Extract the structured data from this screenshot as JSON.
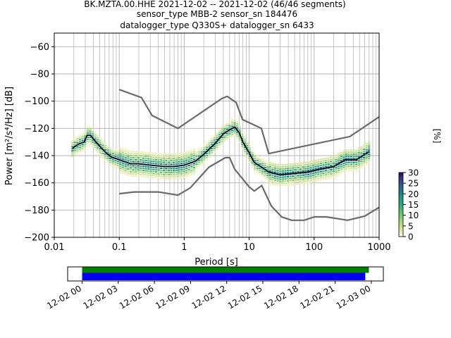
{
  "title_lines": [
    "BK.MZTA.00.HHE   2021-12-02 -- 2021-12-02  (46/46 segments)",
    "sensor_type MBB-2 sensor_sn 184476",
    "datalogger_type Q330S+ datalogger_sn 6433"
  ],
  "colors": {
    "noise_model": "#6a6a6a",
    "mean_line": "#000000",
    "grid": "#b0b0b0",
    "coverage_green": "#008000",
    "coverage_blue": "#0000ee"
  },
  "chart_data": [
    {
      "type": "heatmap",
      "title": "BK.MZTA.00.HHE   2021-12-02 -- 2021-12-02  (46/46 segments)",
      "xlabel": "Period [s]",
      "ylabel": "Power [m²/s⁴/Hz] [dB]",
      "x_scale": "log",
      "xlim": [
        0.01,
        1000
      ],
      "ylim": [
        -200,
        -50
      ],
      "grid": true,
      "x_ticks": [
        {
          "value": 0.01,
          "label": "0.01"
        },
        {
          "value": 0.1,
          "label": "0.1"
        },
        {
          "value": 1,
          "label": "1"
        },
        {
          "value": 10,
          "label": "10"
        },
        {
          "value": 100,
          "label": "100"
        },
        {
          "value": 1000,
          "label": "1000"
        }
      ],
      "y_ticks": [
        -60,
        -80,
        -100,
        -120,
        -140,
        -160,
        -180,
        -200
      ],
      "colorbar": {
        "label": "[%]",
        "range": [
          0,
          30
        ],
        "ticks": [
          0,
          5,
          10,
          15,
          20,
          25,
          30
        ],
        "colormap": "pqlx"
      },
      "series": [
        {
          "name": "",
          "role": "mean",
          "x": [
            0.019,
            0.021,
            0.025,
            0.029,
            0.032,
            0.036,
            0.042,
            0.05,
            0.06,
            0.075,
            0.1,
            0.15,
            0.2,
            0.3,
            0.5,
            0.7,
            1.0,
            1.5,
            2.0,
            3.0,
            4.0,
            5.0,
            6.0,
            7.0,
            8.0,
            10.0,
            12.0,
            15.0,
            20.0,
            30.0,
            50.0,
            80.0,
            120.0,
            200.0,
            300.0,
            450.0,
            700.0
          ],
          "y": [
            -135,
            -133,
            -131,
            -130,
            -125,
            -125,
            -129,
            -133,
            -137,
            -141,
            -143,
            -146,
            -146,
            -147,
            -148,
            -148,
            -147,
            -144,
            -139,
            -131,
            -124,
            -121,
            -119,
            -123,
            -130,
            -138,
            -145,
            -148,
            -152,
            -154,
            -153,
            -152,
            -150,
            -148,
            -143,
            -143,
            -137
          ]
        },
        {
          "name": "",
          "role": "noise-model-upper",
          "x": [
            0.1,
            0.22,
            0.32,
            0.8,
            3.8,
            4.6,
            6.3,
            7.9,
            15.4,
            20.0,
            354.8,
            1000.0
          ],
          "y": [
            -91.5,
            -97.4,
            -110.5,
            -120.0,
            -98.0,
            -96.5,
            -101.0,
            -113.5,
            -120.0,
            -138.5,
            -126.0,
            -111.5
          ]
        },
        {
          "name": "",
          "role": "noise-model-lower",
          "x": [
            0.1,
            0.17,
            0.4,
            0.8,
            1.24,
            2.4,
            4.3,
            5.0,
            6.0,
            10.0,
            12.0,
            15.6,
            21.9,
            31.6,
            45.0,
            70.0,
            101.0,
            154.0,
            328.0,
            600.0,
            1000.0
          ],
          "y": [
            -168.0,
            -166.7,
            -166.7,
            -169.0,
            -163.7,
            -148.5,
            -141.5,
            -141.5,
            -150.0,
            -163.0,
            -166.0,
            -162.0,
            -177.0,
            -185.0,
            -187.5,
            -187.5,
            -185.0,
            -185.0,
            -187.5,
            -184.5,
            -178.0
          ]
        }
      ]
    },
    {
      "type": "bar",
      "role": "data-coverage",
      "x_ticks": [
        "12-02 00",
        "12-02 03",
        "12-02 06",
        "12-02 09",
        "12-02 12",
        "12-02 15",
        "12-02 18",
        "12-02 21",
        "12-03 00"
      ],
      "series": [
        {
          "name": "",
          "color": "#008000",
          "start_hours": 0.0,
          "end_hours": 23.8
        },
        {
          "name": "",
          "color": "#0000ee",
          "start_hours": 0.0,
          "end_hours": 23.5
        }
      ],
      "xlim_hours": [
        -1.2,
        25.0
      ]
    }
  ]
}
